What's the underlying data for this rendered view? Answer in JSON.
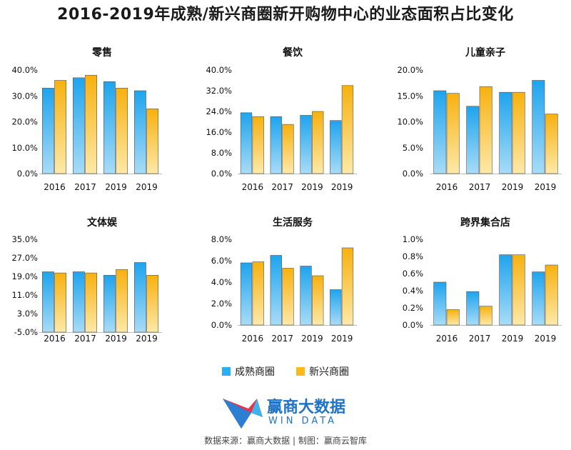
{
  "title": "2016-2019年成熟/新兴商圈新开购物中心的业态面积占比变化",
  "legend": [
    {
      "name": "成熟商圈",
      "color": "#29aef0"
    },
    {
      "name": "新兴商圈",
      "color": "#fbb91a"
    }
  ],
  "logo": {
    "cn": "赢商大数据",
    "en": "WIN DATA"
  },
  "source": "数据来源：赢商大数据 | 制图：赢商云智库",
  "chart_data": [
    {
      "type": "bar",
      "title": "零售",
      "categories": [
        "2016",
        "2017",
        "2019",
        "2019"
      ],
      "series": [
        {
          "name": "成熟商圈",
          "values": [
            33.0,
            37.0,
            35.5,
            32.0
          ]
        },
        {
          "name": "新兴商圈",
          "values": [
            36.0,
            38.0,
            33.0,
            25.0
          ]
        }
      ],
      "ylim": [
        0,
        40
      ],
      "yticks": [
        "0.0%",
        "10.0%",
        "20.0%",
        "30.0%",
        "40.0%"
      ],
      "ytick_values": [
        0,
        10,
        20,
        30,
        40
      ]
    },
    {
      "type": "bar",
      "title": "餐饮",
      "categories": [
        "2016",
        "2017",
        "2019",
        "2019"
      ],
      "series": [
        {
          "name": "成熟商圈",
          "values": [
            23.5,
            22.0,
            22.5,
            20.5
          ]
        },
        {
          "name": "新兴商圈",
          "values": [
            22.0,
            19.0,
            24.0,
            34.0
          ]
        }
      ],
      "ylim": [
        0,
        40
      ],
      "yticks": [
        "0.0%",
        "8.0%",
        "16.0%",
        "24.0%",
        "32.0%",
        "40.0%"
      ],
      "ytick_values": [
        0,
        8,
        16,
        24,
        32,
        40
      ]
    },
    {
      "type": "bar",
      "title": "儿童亲子",
      "categories": [
        "2016",
        "2017",
        "2019",
        "2019"
      ],
      "series": [
        {
          "name": "成熟商圈",
          "values": [
            16.0,
            13.0,
            15.7,
            18.0
          ]
        },
        {
          "name": "新兴商圈",
          "values": [
            15.5,
            16.8,
            15.7,
            11.5
          ]
        }
      ],
      "ylim": [
        0,
        20
      ],
      "yticks": [
        "0.0%",
        "5.0%",
        "10.0%",
        "15.0%",
        "20.0%"
      ],
      "ytick_values": [
        0,
        5,
        10,
        15,
        20
      ]
    },
    {
      "type": "bar",
      "title": "文体娱",
      "categories": [
        "2016",
        "2017",
        "2019",
        "2019"
      ],
      "series": [
        {
          "name": "成熟商圈",
          "values": [
            21.0,
            21.0,
            19.5,
            25.0
          ]
        },
        {
          "name": "新兴商圈",
          "values": [
            20.5,
            20.5,
            22.0,
            19.5
          ]
        }
      ],
      "ylim": [
        -5,
        35
      ],
      "yticks": [
        "-5.0%",
        "3.0%",
        "11.0%",
        "19.0%",
        "27.0%",
        "35.0%"
      ],
      "ytick_values": [
        -5,
        3,
        11,
        19,
        27,
        35
      ]
    },
    {
      "type": "bar",
      "title": "生活服务",
      "categories": [
        "2016",
        "2017",
        "2019",
        "2019"
      ],
      "series": [
        {
          "name": "成熟商圈",
          "values": [
            5.8,
            6.5,
            5.5,
            3.3
          ]
        },
        {
          "name": "新兴商圈",
          "values": [
            5.9,
            5.3,
            4.6,
            7.2
          ]
        }
      ],
      "ylim": [
        0,
        8
      ],
      "yticks": [
        "0.0%",
        "2.0%",
        "4.0%",
        "6.0%",
        "8.0%"
      ],
      "ytick_values": [
        0,
        2,
        4,
        6,
        8
      ]
    },
    {
      "type": "bar",
      "title": "跨界集合店",
      "categories": [
        "2016",
        "2017",
        "2019",
        "2019"
      ],
      "series": [
        {
          "name": "成熟商圈",
          "values": [
            0.5,
            0.39,
            0.82,
            0.62
          ]
        },
        {
          "name": "新兴商圈",
          "values": [
            0.18,
            0.22,
            0.82,
            0.7
          ]
        }
      ],
      "ylim": [
        0,
        1.0
      ],
      "yticks": [
        "0.0%",
        "0.2%",
        "0.4%",
        "0.6%",
        "0.8%",
        "1.0%"
      ],
      "ytick_values": [
        0,
        0.2,
        0.4,
        0.6,
        0.8,
        1.0
      ]
    }
  ]
}
